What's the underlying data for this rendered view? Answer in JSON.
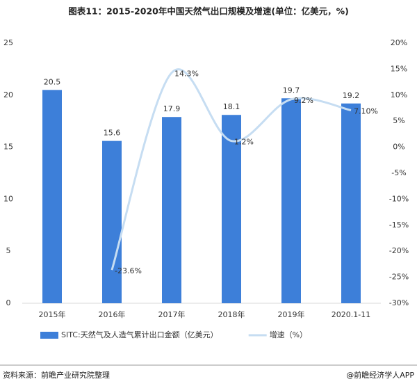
{
  "chart_data": {
    "type": "bar_line",
    "title": "图表11：2015-2020年中国天然气出口规模及增速(单位：亿美元，%)",
    "categories": [
      "2015年",
      "2016年",
      "2017年",
      "2018年",
      "2019年",
      "2020.1-11"
    ],
    "series": [
      {
        "name": "SITC:天然气及人造气累计出口金额（亿美元）",
        "type": "bar",
        "color": "#3d7fd9",
        "values": [
          20.5,
          15.6,
          17.9,
          18.1,
          19.7,
          19.2
        ]
      },
      {
        "name": "增速（%）",
        "type": "line",
        "axis": "y2",
        "color": "#c6ddf2",
        "values": [
          null,
          -23.6,
          14.3,
          1.2,
          9.2,
          7.1
        ],
        "value_labels": [
          null,
          "-23.6%",
          "14.3%",
          "1.2%",
          "9.2%",
          "7.10%"
        ]
      }
    ],
    "ylim": [
      0,
      25
    ],
    "yticks": [
      0,
      5,
      10,
      15,
      20,
      25
    ],
    "y2lim": [
      -30,
      20
    ],
    "y2ticks": [
      {
        "value": -30,
        "label": "-30%"
      },
      {
        "value": -25,
        "label": "-25%"
      },
      {
        "value": -20,
        "label": "-20%"
      },
      {
        "value": -15,
        "label": "-15%"
      },
      {
        "value": -10,
        "label": "-10%"
      },
      {
        "value": -5,
        "label": "-5%"
      },
      {
        "value": 0,
        "label": "0%"
      },
      {
        "value": 5,
        "label": "5%"
      },
      {
        "value": 10,
        "label": "10%"
      },
      {
        "value": 15,
        "label": "15%"
      },
      {
        "value": 20,
        "label": "20%"
      }
    ],
    "grid": false,
    "legend": "bottom"
  },
  "source": "资料来源：前瞻产业研究院整理",
  "credit": "@前瞻经济学人APP"
}
